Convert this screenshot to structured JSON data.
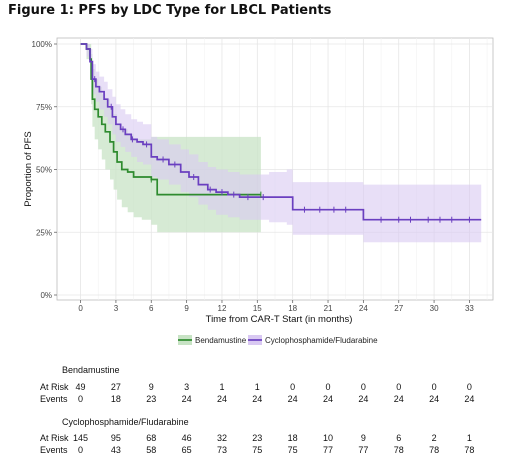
{
  "figure_title": "Figure 1: PFS by LDC Type for LBCL Patients",
  "colors": {
    "bendamustine": "#2e8b2e",
    "bendamustine_band": "#c8e3c5",
    "cyclo": "#6a3fc0",
    "cyclo_band": "#d9c9f2",
    "grid": "#e6e6e6",
    "panel_border": "#bbbbbb"
  },
  "chart_data": {
    "type": "line",
    "xlabel": "Time from CAR-T Start (in months)",
    "ylabel": "Proportion of PFS",
    "xlim": [
      -2,
      35
    ],
    "ylim": [
      0,
      1
    ],
    "x_ticks": [
      0,
      3,
      6,
      9,
      12,
      15,
      18,
      21,
      24,
      27,
      30,
      33
    ],
    "y_ticks": [
      0,
      0.25,
      0.5,
      0.75,
      1.0
    ],
    "y_tick_labels": [
      "0%",
      "25%",
      "50%",
      "75%",
      "100%"
    ],
    "grid": true,
    "legend_position": "bottom",
    "series": [
      {
        "name": "Bendamustine",
        "x": [
          0,
          0.5,
          0.8,
          0.9,
          1.0,
          1.2,
          1.5,
          1.8,
          2.1,
          2.5,
          2.8,
          3.1,
          3.5,
          4.0,
          4.5,
          5.2,
          6.0,
          6.5,
          15.3
        ],
        "y": [
          1.0,
          0.98,
          0.94,
          0.86,
          0.78,
          0.74,
          0.71,
          0.68,
          0.65,
          0.61,
          0.57,
          0.53,
          0.5,
          0.49,
          0.47,
          0.47,
          0.46,
          0.4,
          0.4
        ],
        "lower": [
          1.0,
          0.94,
          0.86,
          0.76,
          0.67,
          0.62,
          0.58,
          0.54,
          0.5,
          0.46,
          0.42,
          0.38,
          0.35,
          0.33,
          0.31,
          0.3,
          0.28,
          0.25,
          0.25
        ],
        "upper": [
          1.0,
          1.0,
          1.0,
          0.96,
          0.9,
          0.86,
          0.83,
          0.8,
          0.78,
          0.75,
          0.72,
          0.68,
          0.66,
          0.64,
          0.62,
          0.62,
          0.63,
          0.63,
          0.63
        ],
        "censor_x": [
          6.0,
          15.3
        ]
      },
      {
        "name": "Cyclophosphamide/Fludarabine",
        "x": [
          0,
          0.5,
          0.8,
          1.0,
          1.3,
          1.6,
          2.0,
          2.3,
          2.7,
          3.0,
          3.4,
          3.8,
          4.3,
          4.8,
          5.3,
          6.0,
          6.5,
          7.5,
          8.5,
          9.2,
          10.0,
          10.8,
          11.5,
          12.5,
          13.5,
          16.0,
          17.5,
          18.0,
          24.0,
          34.0
        ],
        "y": [
          1.0,
          0.98,
          0.93,
          0.86,
          0.83,
          0.81,
          0.78,
          0.75,
          0.71,
          0.68,
          0.66,
          0.64,
          0.62,
          0.61,
          0.6,
          0.55,
          0.54,
          0.52,
          0.49,
          0.47,
          0.44,
          0.42,
          0.41,
          0.4,
          0.39,
          0.39,
          0.39,
          0.34,
          0.3,
          0.3
        ],
        "lower": [
          1.0,
          0.95,
          0.88,
          0.8,
          0.77,
          0.74,
          0.71,
          0.68,
          0.64,
          0.61,
          0.59,
          0.57,
          0.55,
          0.53,
          0.52,
          0.47,
          0.46,
          0.44,
          0.41,
          0.39,
          0.36,
          0.34,
          0.32,
          0.31,
          0.3,
          0.29,
          0.28,
          0.24,
          0.21,
          0.21
        ],
        "upper": [
          1.0,
          1.0,
          0.98,
          0.92,
          0.89,
          0.87,
          0.85,
          0.82,
          0.79,
          0.76,
          0.74,
          0.72,
          0.7,
          0.69,
          0.68,
          0.63,
          0.62,
          0.6,
          0.58,
          0.56,
          0.53,
          0.51,
          0.5,
          0.49,
          0.48,
          0.49,
          0.5,
          0.45,
          0.44,
          0.44
        ],
        "censor_x": [
          1.2,
          2.6,
          3.6,
          4.4,
          5.6,
          7.0,
          8.0,
          9.6,
          11.0,
          12.0,
          13.0,
          14.2,
          15.5,
          19.0,
          20.3,
          21.5,
          22.5,
          25.5,
          27.0,
          28.0,
          29.5,
          30.5,
          31.5,
          33.0
        ]
      }
    ]
  },
  "legend": {
    "items": [
      {
        "label": "Bendamustine"
      },
      {
        "label": "Cyclophosphamide/Fludarabine"
      }
    ]
  },
  "risk_table": {
    "times": [
      0,
      3,
      6,
      9,
      12,
      15,
      18,
      21,
      24,
      27,
      30,
      33
    ],
    "groups": [
      {
        "name": "Bendamustine",
        "at_risk_label": "At Risk",
        "events_label": "Events",
        "at_risk": [
          "49",
          "27",
          "9",
          "3",
          "1",
          "1",
          "0",
          "0",
          "0",
          "0",
          "0",
          "0"
        ],
        "events": [
          "0",
          "18",
          "23",
          "24",
          "24",
          "24",
          "24",
          "24",
          "24",
          "24",
          "24",
          "24"
        ]
      },
      {
        "name": "Cyclophosphamide/Fludarabine",
        "at_risk_label": "At Risk",
        "events_label": "Events",
        "at_risk": [
          "145",
          "95",
          "68",
          "46",
          "32",
          "23",
          "18",
          "10",
          "9",
          "6",
          "2",
          "1"
        ],
        "events": [
          "0",
          "43",
          "58",
          "65",
          "73",
          "75",
          "75",
          "77",
          "77",
          "78",
          "78",
          "78"
        ]
      }
    ]
  }
}
